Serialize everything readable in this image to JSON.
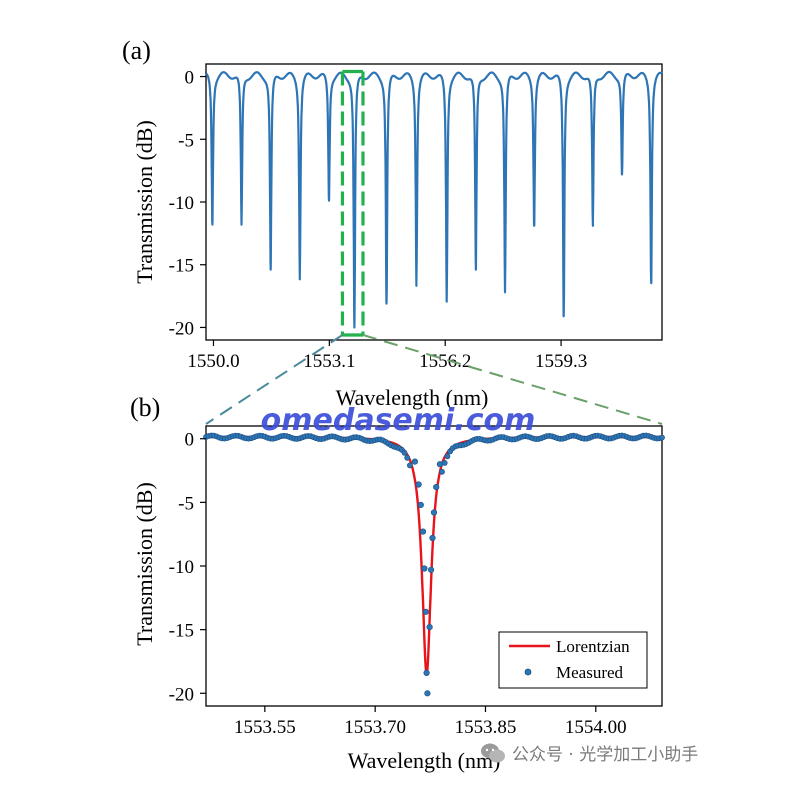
{
  "chart_data": [
    {
      "panel_label": "(a)",
      "type": "line",
      "xlabel": "Wavelength (nm)",
      "ylabel": "Transmission (dB)",
      "xlim": [
        1549.8,
        1562.0
      ],
      "ylim": [
        -21.0,
        1.0
      ],
      "xticks": [
        1550.0,
        1553.1,
        1556.2,
        1559.3
      ],
      "xtick_labels": [
        "1550.0",
        "1553.1",
        "1556.2",
        "1559.3"
      ],
      "yticks": [
        0,
        -5,
        -10,
        -15,
        -20
      ],
      "ytick_labels": [
        "0",
        "-5",
        "-10",
        "-15",
        "-20"
      ],
      "baseline_db": 0.2,
      "resonance_dips": [
        {
          "x": 1549.97,
          "y": -11.8
        },
        {
          "x": 1550.75,
          "y": -11.8
        },
        {
          "x": 1551.53,
          "y": -15.4
        },
        {
          "x": 1552.31,
          "y": -15.9
        },
        {
          "x": 1553.09,
          "y": -9.9
        },
        {
          "x": 1553.77,
          "y": -20.0
        },
        {
          "x": 1554.63,
          "y": -18.1
        },
        {
          "x": 1555.43,
          "y": -16.4
        },
        {
          "x": 1556.24,
          "y": -17.8
        },
        {
          "x": 1557.02,
          "y": -15.4
        },
        {
          "x": 1557.8,
          "y": -17.2
        },
        {
          "x": 1558.58,
          "y": -11.9
        },
        {
          "x": 1559.37,
          "y": -19.1
        },
        {
          "x": 1560.15,
          "y": -11.9
        },
        {
          "x": 1560.93,
          "y": -7.8
        },
        {
          "x": 1561.71,
          "y": -16.4
        }
      ],
      "zoom_window": {
        "x_range": [
          1553.45,
          1554.0
        ],
        "y_range": [
          -20.6,
          0.4
        ]
      },
      "series_color": "#2e75b6",
      "zoom_color": "#22b14c"
    },
    {
      "panel_label": "(b)",
      "type": "line+scatter",
      "xlabel": "Wavelength (nm)",
      "ylabel": "Transmission (dB)",
      "xlim": [
        1553.47,
        1554.09
      ],
      "ylim": [
        -21.0,
        1.0
      ],
      "xticks": [
        1553.55,
        1553.7,
        1553.85,
        1554.0
      ],
      "xtick_labels": [
        "1553.55",
        "1553.70",
        "1553.85",
        "1554.00"
      ],
      "yticks": [
        0,
        -5,
        -10,
        -15,
        -20
      ],
      "ytick_labels": [
        "0",
        "-5",
        "-10",
        "-15",
        "-20"
      ],
      "resonance_center_nm": 1553.77,
      "resonance_depth_db": -18.5,
      "legend_position": "bottom-right",
      "series": [
        {
          "name": "Lorentzian",
          "style": "line",
          "color": "#e8141b"
        },
        {
          "name": "Measured",
          "style": "markers",
          "color": "#2e75b6",
          "dip_points": [
            {
              "x": 1553.754,
              "y": -1.8
            },
            {
              "x": 1553.759,
              "y": -3.6
            },
            {
              "x": 1553.762,
              "y": -5.2
            },
            {
              "x": 1553.765,
              "y": -7.3
            },
            {
              "x": 1553.767,
              "y": -10.2
            },
            {
              "x": 1553.769,
              "y": -13.6
            },
            {
              "x": 1553.77,
              "y": -18.4
            },
            {
              "x": 1553.771,
              "y": -20.0
            },
            {
              "x": 1553.774,
              "y": -14.8
            },
            {
              "x": 1553.776,
              "y": -10.3
            },
            {
              "x": 1553.778,
              "y": -7.8
            },
            {
              "x": 1553.78,
              "y": -5.8
            },
            {
              "x": 1553.783,
              "y": -3.8
            },
            {
              "x": 1553.788,
              "y": -2.0
            }
          ]
        }
      ]
    }
  ],
  "watermark": "omedasemi.com",
  "credit": "公众号 · 光学加工小助手"
}
